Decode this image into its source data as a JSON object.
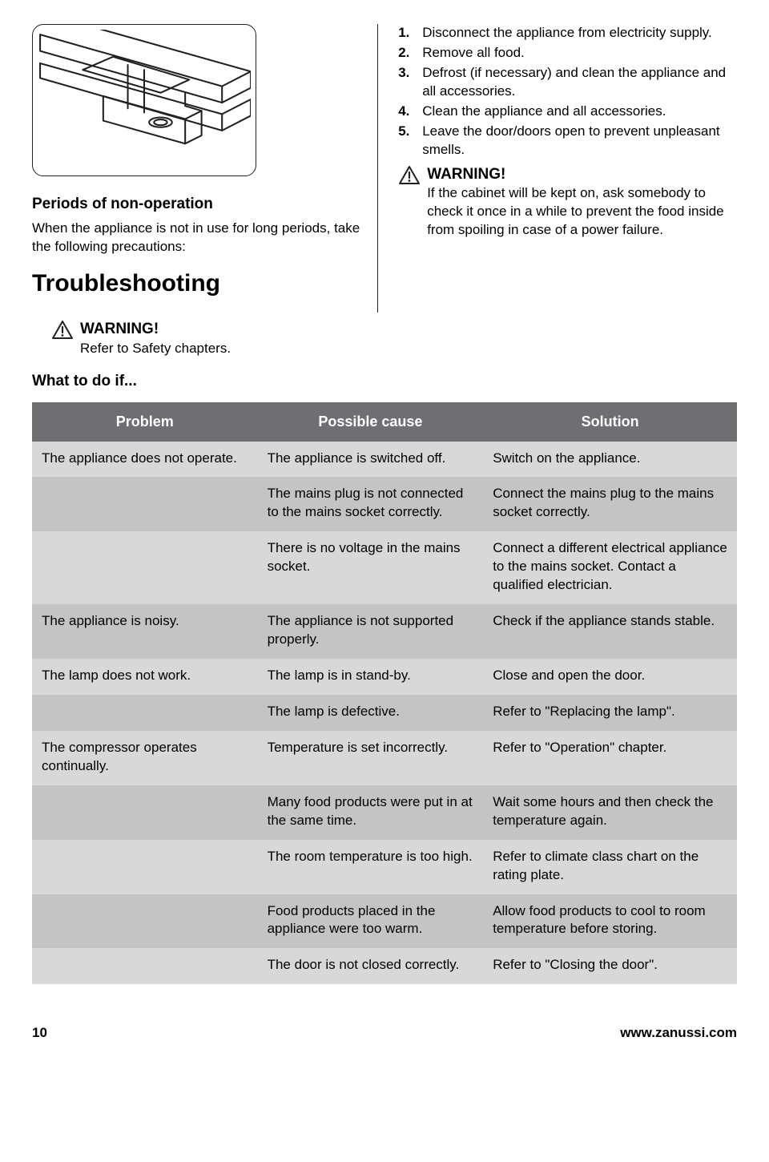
{
  "left": {
    "subheading": "Periods of non-operation",
    "paragraph": "When the appliance is not in use for long periods, take the following precautions:",
    "mainheading": "Troubleshooting"
  },
  "right": {
    "steps": [
      "Disconnect the appliance from electricity supply.",
      "Remove all food.",
      "Defrost (if necessary) and clean the appliance and all accessories.",
      "Clean the appliance and all accessories.",
      "Leave the door/doors open to prevent unpleasant smells."
    ],
    "warning_title": "WARNING!",
    "warning_text": "If the cabinet will be kept on, ask somebody to check it once in a while to prevent the food inside from spoiling in case of a power failure."
  },
  "warn2_title": "WARNING!",
  "warn2_text": "Refer to Safety chapters.",
  "what_to": "What to do if...",
  "table": {
    "headers": [
      "Problem",
      "Possible cause",
      "Solution"
    ],
    "rows": [
      {
        "shade": "A",
        "c": [
          "The appliance does not operate.",
          "The appliance is switched off.",
          "Switch on the appliance."
        ]
      },
      {
        "shade": "B",
        "c": [
          "",
          "The mains plug is not connected to the mains socket correctly.",
          "Connect the mains plug to the mains socket correctly."
        ]
      },
      {
        "shade": "A",
        "c": [
          "",
          "There is no voltage in the mains socket.",
          "Connect a different electrical appliance to the mains socket. Contact a qualified electrician."
        ]
      },
      {
        "shade": "B",
        "c": [
          "The appliance is noisy.",
          "The appliance is not supported properly.",
          "Check if the appliance stands stable."
        ]
      },
      {
        "shade": "A",
        "c": [
          "The lamp does not work.",
          "The lamp is in stand-by.",
          "Close and open the door."
        ]
      },
      {
        "shade": "B",
        "c": [
          "",
          "The lamp is defective.",
          "Refer to \"Replacing the lamp\"."
        ]
      },
      {
        "shade": "A",
        "c": [
          "The compressor operates continually.",
          "Temperature is set incorrectly.",
          "Refer to \"Operation\" chapter."
        ]
      },
      {
        "shade": "B",
        "c": [
          "",
          "Many food products were put in at the same time.",
          "Wait some hours and then check the temperature again."
        ]
      },
      {
        "shade": "A",
        "c": [
          "",
          "The room temperature is too high.",
          "Refer to climate class chart on the rating plate."
        ]
      },
      {
        "shade": "B",
        "c": [
          "",
          "Food products placed in the appliance were too warm.",
          "Allow food products to cool to room temperature before storing."
        ]
      },
      {
        "shade": "A",
        "c": [
          "",
          "The door is not closed correctly.",
          "Refer to \"Closing the door\"."
        ]
      }
    ]
  },
  "footer": {
    "page": "10",
    "url": "www.zanussi.com"
  }
}
